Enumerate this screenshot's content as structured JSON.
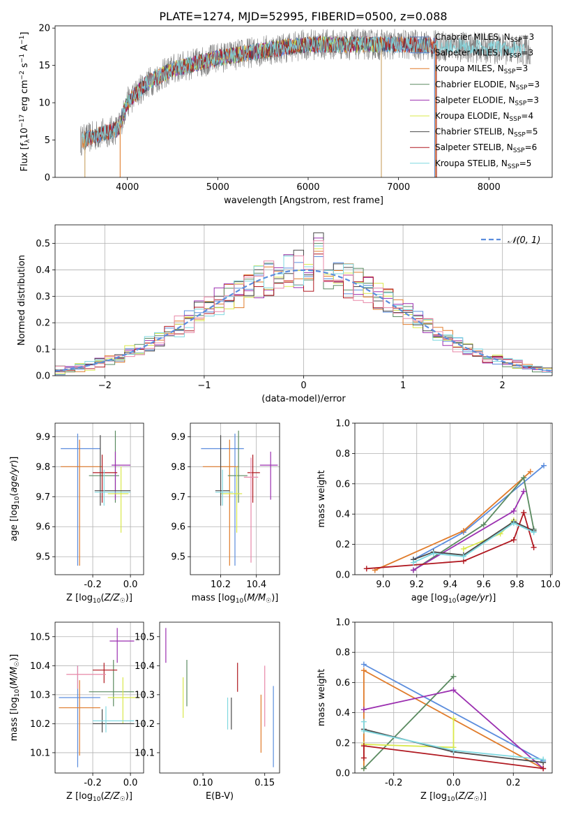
{
  "figure": {
    "title": "PLATE=1274, MJD=52995, FIBERID=0500, z=0.088"
  },
  "colors": {
    "Chabrier MILES": "#4f6fb0",
    "Salpeter MILES": "#5b8ddd",
    "Kroupa MILES": "#e07b2a",
    "Chabrier ELODIE": "#5a8a60",
    "Salpeter ELODIE": "#9b2fb0",
    "Kroupa ELODIE": "#d9e84a",
    "Chabrier STELIB": "#4a4a4a",
    "Salpeter STELIB": "#b01820",
    "Kroupa STELIB": "#7fd8e0",
    "pink": "#e888a8",
    "gauss": "#5b8ddd"
  },
  "chart_data": [
    {
      "id": "spectrum",
      "type": "line",
      "xlabel": "wavelength [Angstrom, rest frame]",
      "ylabel": "Flux [f_λ 10^-17 erg cm^-2 s^-1 A^-1]",
      "xlim": [
        3200,
        8700
      ],
      "ylim": [
        0,
        20.3
      ],
      "xticks": [
        4000,
        5000,
        6000,
        7000,
        8000
      ],
      "yticks": [
        0,
        5,
        10,
        15,
        20
      ],
      "grid": false,
      "legend_position": "top-right",
      "legend": [
        {
          "label": "Chabrier MILES",
          "nssp": "3"
        },
        {
          "label": "Salpeter MILES",
          "nssp": "3"
        },
        {
          "label": "Kroupa MILES",
          "nssp": "3"
        },
        {
          "label": "Chabrier ELODIE",
          "nssp": "3"
        },
        {
          "label": "Salpeter ELODIE",
          "nssp": "3"
        },
        {
          "label": "Kroupa ELODIE",
          "nssp": "4"
        },
        {
          "label": "Chabrier STELIB",
          "nssp": "5"
        },
        {
          "label": "Salpeter STELIB",
          "nssp": "6"
        },
        {
          "label": "Kroupa STELIB",
          "nssp": "5"
        }
      ],
      "continuum": {
        "x": [
          3500,
          3700,
          3900,
          4000,
          4200,
          4500,
          5000,
          5500,
          6000,
          6500,
          7000,
          7500,
          8000,
          8500
        ],
        "y": [
          5.0,
          5.8,
          6.5,
          10.0,
          12.5,
          14.5,
          16.0,
          17.0,
          17.8,
          17.8,
          17.8,
          17.6,
          17.3,
          17.0
        ]
      },
      "dips": [
        {
          "x": 3530,
          "y": 0
        },
        {
          "x": 3920,
          "y": 0
        },
        {
          "x": 6810,
          "y": 0
        },
        {
          "x": 7410,
          "y": 0
        }
      ]
    },
    {
      "id": "residuals",
      "type": "histogram",
      "xlabel": "(data-model)/error",
      "ylabel": "Normed distribution",
      "xlim": [
        -2.5,
        2.5
      ],
      "ylim": [
        0,
        0.57
      ],
      "xticks": [
        -2,
        -1,
        0,
        1,
        2
      ],
      "yticks": [
        0.0,
        0.1,
        0.2,
        0.3,
        0.4,
        0.5
      ],
      "grid": true,
      "legend_position": "top-right",
      "legend_label": "𝒩(0, 1)",
      "bins": {
        "start": -2.5,
        "width": 0.1,
        "count": 50
      },
      "peaks": [
        0.45,
        0.47,
        0.5,
        0.52,
        0.48,
        0.54,
        0.46,
        0.49,
        0.51
      ]
    },
    {
      "id": "age_vs_Z",
      "type": "scatter",
      "xlabel": "Z [log10(Z/Z☉)]",
      "ylabel": "age [log10(age/yr)]",
      "xlim": [
        -0.4,
        0.07
      ],
      "ylim": [
        9.44,
        9.945
      ],
      "xticks": [
        -0.2,
        0.0
      ],
      "yticks": [
        9.5,
        9.6,
        9.7,
        9.8,
        9.9
      ],
      "grid": true,
      "points": [
        {
          "c": "Salpeter MILES",
          "x": -0.28,
          "xe": [
            -0.37,
            -0.16
          ],
          "y": 9.86,
          "ye": [
            9.47,
            9.91
          ]
        },
        {
          "c": "Kroupa MILES",
          "x": -0.27,
          "xe": [
            -0.37,
            -0.15
          ],
          "y": 9.8,
          "ye": [
            9.47,
            9.89
          ]
        },
        {
          "c": "Chabrier ELODIE",
          "x": -0.08,
          "xe": [
            -0.22,
            -0.06
          ],
          "y": 9.77,
          "ye": [
            9.68,
            9.92
          ]
        },
        {
          "c": "Salpeter ELODIE",
          "x": -0.08,
          "xe": [
            -0.1,
            -0.0
          ],
          "y": 9.805,
          "ye": [
            9.69,
            9.85
          ]
        },
        {
          "c": "Kroupa ELODIE",
          "x": -0.05,
          "xe": [
            -0.12,
            -0.01
          ],
          "y": 9.71,
          "ye": [
            9.58,
            9.8
          ]
        },
        {
          "c": "Chabrier STELIB",
          "x": -0.16,
          "xe": [
            -0.19,
            0.0
          ],
          "y": 9.72,
          "ye": [
            9.67,
            9.905
          ]
        },
        {
          "c": "Salpeter STELIB",
          "x": -0.15,
          "xe": [
            -0.2,
            -0.07
          ],
          "y": 9.78,
          "ye": [
            9.68,
            9.84
          ]
        },
        {
          "c": "Kroupa STELIB",
          "x": -0.14,
          "xe": [
            -0.19,
            0.0
          ],
          "y": 9.715,
          "ye": [
            9.67,
            9.79
          ]
        }
      ]
    },
    {
      "id": "age_vs_mass",
      "type": "scatter",
      "xlabel": "mass [log10(M/M☉)]",
      "xlim": [
        10.03,
        10.53
      ],
      "ylim": [
        9.44,
        9.945
      ],
      "xticks": [
        10.2,
        10.4
      ],
      "yticks": [
        9.5,
        9.6,
        9.7,
        9.8,
        9.9
      ],
      "grid": true,
      "points": [
        {
          "c": "Salpeter MILES",
          "x": 10.28,
          "xe": [
            10.09,
            10.33
          ],
          "y": 9.86,
          "ye": [
            9.47,
            9.91
          ]
        },
        {
          "c": "Kroupa MILES",
          "x": 10.25,
          "xe": [
            10.1,
            10.3
          ],
          "y": 9.8,
          "ye": [
            9.47,
            9.89
          ]
        },
        {
          "c": "Chabrier ELODIE",
          "x": 10.3,
          "xe": [
            10.24,
            10.35
          ],
          "y": 9.77,
          "ye": [
            9.68,
            9.92
          ]
        },
        {
          "c": "Salpeter ELODIE",
          "x": 10.48,
          "xe": [
            10.42,
            10.52
          ],
          "y": 9.805,
          "ye": [
            9.69,
            9.85
          ]
        },
        {
          "c": "Kroupa ELODIE",
          "x": 10.29,
          "xe": [
            10.2,
            10.32
          ],
          "y": 9.71,
          "ye": [
            9.58,
            9.8
          ]
        },
        {
          "c": "Chabrier STELIB",
          "x": 10.2,
          "xe": [
            10.17,
            10.25
          ],
          "y": 9.72,
          "ye": [
            9.67,
            9.905
          ]
        },
        {
          "c": "Salpeter STELIB",
          "x": 10.38,
          "xe": [
            10.35,
            10.42
          ],
          "y": 9.78,
          "ye": [
            9.68,
            9.84
          ]
        },
        {
          "c": "Kroupa STELIB",
          "x": 10.21,
          "xe": [
            10.17,
            10.27
          ],
          "y": 9.715,
          "ye": [
            9.67,
            9.79
          ]
        },
        {
          "c": "pink",
          "x": 10.37,
          "xe": [
            10.33,
            10.41
          ],
          "y": 9.765,
          "ye": [
            9.48,
            9.83
          ]
        }
      ]
    },
    {
      "id": "mass_weight_vs_age",
      "type": "line",
      "xlabel": "age [log10(age/yr)]",
      "ylabel": "mass weight",
      "xlim": [
        8.83,
        10.01
      ],
      "ylim": [
        0,
        1.0
      ],
      "xticks": [
        9.0,
        9.2,
        9.4,
        9.6,
        9.8,
        10.0
      ],
      "yticks": [
        0.0,
        0.2,
        0.4,
        0.6,
        0.8,
        1.0
      ],
      "grid": true,
      "series": [
        {
          "c": "Salpeter MILES",
          "x": [
            9.18,
            9.48,
            9.96
          ],
          "y": [
            0.1,
            0.28,
            0.72
          ]
        },
        {
          "c": "Kroupa MILES",
          "x": [
            8.95,
            9.48,
            9.88
          ],
          "y": [
            0.03,
            0.29,
            0.68
          ]
        },
        {
          "c": "Chabrier ELODIE",
          "x": [
            9.18,
            9.6,
            9.84,
            9.9
          ],
          "y": [
            0.03,
            0.33,
            0.64,
            0.3
          ]
        },
        {
          "c": "Salpeter ELODIE",
          "x": [
            9.18,
            9.78,
            9.84
          ],
          "y": [
            0.03,
            0.42,
            0.55
          ]
        },
        {
          "c": "Kroupa ELODIE",
          "x": [
            9.48,
            9.7,
            9.78
          ],
          "y": [
            0.17,
            0.27,
            0.36
          ]
        },
        {
          "c": "Chabrier STELIB",
          "x": [
            9.18,
            9.3,
            9.48,
            9.78,
            9.9
          ],
          "y": [
            0.1,
            0.15,
            0.13,
            0.35,
            0.29
          ]
        },
        {
          "c": "Salpeter STELIB",
          "x": [
            8.9,
            9.48,
            9.78,
            9.84,
            9.9
          ],
          "y": [
            0.04,
            0.09,
            0.23,
            0.41,
            0.18
          ]
        },
        {
          "c": "Kroupa STELIB",
          "x": [
            9.18,
            9.3,
            9.48,
            9.78,
            9.9
          ],
          "y": [
            0.08,
            0.14,
            0.12,
            0.34,
            0.28
          ]
        }
      ]
    },
    {
      "id": "mass_vs_Z",
      "type": "scatter",
      "xlabel": "Z [log10(Z/Z☉)]",
      "ylabel": "mass [log10(M/M☉)]",
      "xlim": [
        -0.4,
        0.07
      ],
      "ylim": [
        10.03,
        10.55
      ],
      "xticks": [
        -0.2,
        0.0
      ],
      "yticks": [
        10.1,
        10.2,
        10.3,
        10.4,
        10.5
      ],
      "grid": true,
      "points": [
        {
          "c": "Salpeter MILES",
          "x": -0.28,
          "xe": [
            -0.38,
            -0.16
          ],
          "y": 10.29,
          "ye": [
            10.05,
            10.4
          ]
        },
        {
          "c": "Kroupa MILES",
          "x": -0.27,
          "xe": [
            -0.38,
            -0.16
          ],
          "y": 10.255,
          "ye": [
            10.09,
            10.35
          ]
        },
        {
          "c": "Chabrier ELODIE",
          "x": -0.09,
          "xe": [
            -0.22,
            0.02
          ],
          "y": 10.31,
          "ye": [
            10.26,
            10.42
          ]
        },
        {
          "c": "Salpeter ELODIE",
          "x": -0.07,
          "xe": [
            -0.11,
            0.02
          ],
          "y": 10.485,
          "ye": [
            10.41,
            10.53
          ]
        },
        {
          "c": "Kroupa ELODIE",
          "x": -0.04,
          "xe": [
            -0.12,
            0.05
          ],
          "y": 10.29,
          "ye": [
            10.2,
            10.36
          ]
        },
        {
          "c": "Chabrier STELIB",
          "x": -0.15,
          "xe": [
            -0.2,
            0.02
          ],
          "y": 10.2,
          "ye": [
            10.17,
            10.25
          ]
        },
        {
          "c": "Salpeter STELIB",
          "x": -0.14,
          "xe": [
            -0.2,
            -0.07
          ],
          "y": 10.385,
          "ye": [
            10.34,
            10.41
          ]
        },
        {
          "c": "Kroupa STELIB",
          "x": -0.13,
          "xe": [
            -0.2,
            0.02
          ],
          "y": 10.21,
          "ye": [
            10.17,
            10.26
          ]
        },
        {
          "c": "pink",
          "x": -0.28,
          "xe": [
            -0.34,
            -0.13
          ],
          "y": 10.37,
          "ye": [
            10.32,
            10.4
          ]
        }
      ]
    },
    {
      "id": "mass_vs_ebv",
      "type": "scatter",
      "xlabel": "E(B-V)",
      "xlim": [
        0.065,
        0.162
      ],
      "ylim": [
        10.03,
        10.55
      ],
      "xticks": [
        0.1,
        0.15
      ],
      "yticks": [
        10.1,
        10.2,
        10.3,
        10.4,
        10.5
      ],
      "grid": false,
      "points": [
        {
          "c": "Salpeter MILES",
          "x": 0.157,
          "xe": [
            0.157,
            0.157
          ],
          "y": 10.25,
          "ye": [
            10.05,
            10.33
          ]
        },
        {
          "c": "Kroupa MILES",
          "x": 0.147,
          "xe": [
            0.147,
            0.147
          ],
          "y": 10.2,
          "ye": [
            10.1,
            10.3
          ]
        },
        {
          "c": "Chabrier ELODIE",
          "x": 0.087,
          "xe": [
            0.087,
            0.087
          ],
          "y": 10.34,
          "ye": [
            10.26,
            10.42
          ]
        },
        {
          "c": "Salpeter ELODIE",
          "x": 0.07,
          "xe": [
            0.07,
            0.07
          ],
          "y": 10.47,
          "ye": [
            10.41,
            10.53
          ]
        },
        {
          "c": "Kroupa ELODIE",
          "x": 0.084,
          "xe": [
            0.084,
            0.084
          ],
          "y": 10.3,
          "ye": [
            10.22,
            10.36
          ]
        },
        {
          "c": "Chabrier STELIB",
          "x": 0.123,
          "xe": [
            0.123,
            0.123
          ],
          "y": 10.24,
          "ye": [
            10.18,
            10.29
          ]
        },
        {
          "c": "Salpeter STELIB",
          "x": 0.128,
          "xe": [
            0.128,
            0.128
          ],
          "y": 10.36,
          "ye": [
            10.31,
            10.41
          ]
        },
        {
          "c": "Kroupa STELIB",
          "x": 0.12,
          "xe": [
            0.12,
            0.12
          ],
          "y": 10.24,
          "ye": [
            10.18,
            10.29
          ]
        },
        {
          "c": "pink",
          "x": 0.15,
          "xe": [
            0.15,
            0.15
          ],
          "y": 10.3,
          "ye": [
            10.19,
            10.4
          ]
        }
      ]
    },
    {
      "id": "mass_weight_vs_Z",
      "type": "line",
      "xlabel": "Z [log10(Z/Z☉)]",
      "ylabel": "mass weight",
      "xlim": [
        -0.33,
        0.33
      ],
      "ylim": [
        0,
        1.0
      ],
      "xticks": [
        -0.2,
        0.0,
        0.2
      ],
      "yticks": [
        0.0,
        0.2,
        0.4,
        0.6,
        0.8,
        1.0
      ],
      "grid": true,
      "series": [
        {
          "c": "Salpeter MILES",
          "x": [
            -0.3,
            0.3
          ],
          "y": [
            0.72,
            0.08
          ]
        },
        {
          "c": "Kroupa MILES",
          "x": [
            -0.3,
            -0.3,
            0.3
          ],
          "y": [
            0.03,
            0.68,
            0.03
          ]
        },
        {
          "c": "Chabrier ELODIE",
          "x": [
            -0.3,
            0.0
          ],
          "y": [
            0.03,
            0.64
          ]
        },
        {
          "c": "Salpeter ELODIE",
          "x": [
            -0.3,
            0.0,
            0.3
          ],
          "y": [
            0.42,
            0.55,
            0.03
          ]
        },
        {
          "c": "Kroupa ELODIE",
          "x": [
            -0.3,
            0.0,
            0.0
          ],
          "y": [
            0.19,
            0.17,
            0.36
          ]
        },
        {
          "c": "Chabrier STELIB",
          "x": [
            -0.3,
            0.0,
            0.3
          ],
          "y": [
            0.29,
            0.14,
            0.07
          ]
        },
        {
          "c": "Salpeter STELIB",
          "x": [
            -0.3,
            -0.3,
            0.3
          ],
          "y": [
            0.1,
            0.18,
            0.03
          ]
        },
        {
          "c": "Kroupa STELIB",
          "x": [
            -0.3,
            -0.3,
            0.0,
            0.3
          ],
          "y": [
            0.34,
            0.28,
            0.15,
            0.09
          ]
        }
      ]
    }
  ]
}
